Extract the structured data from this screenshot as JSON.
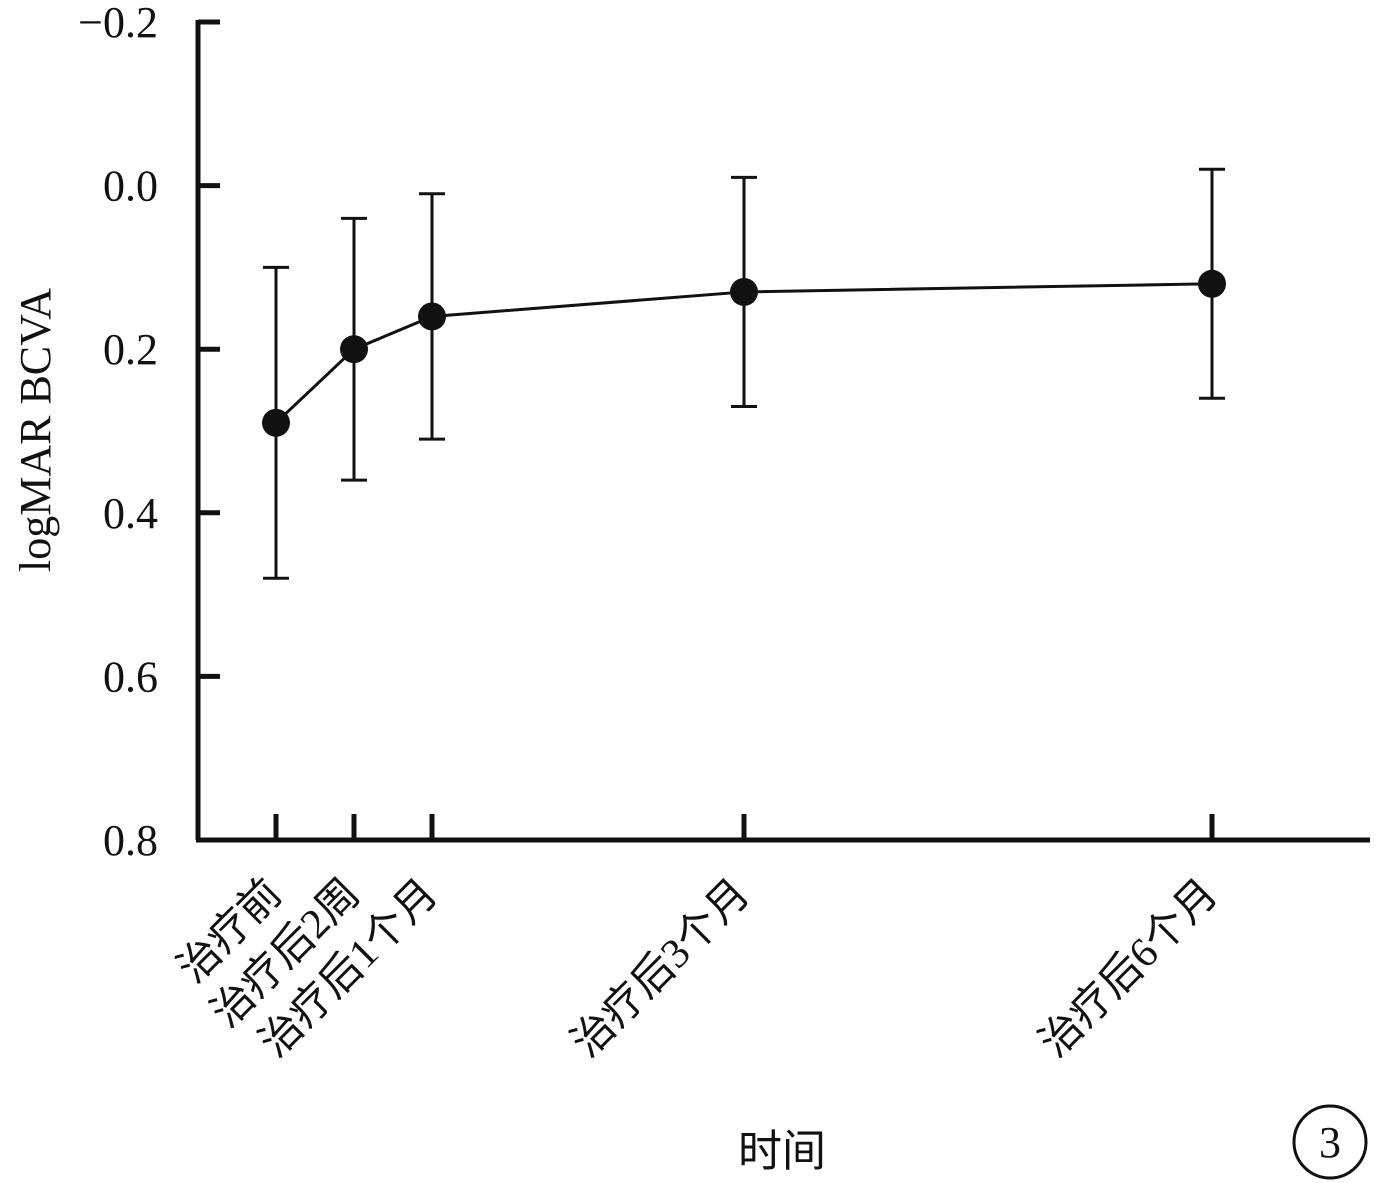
{
  "chart_data": {
    "type": "line",
    "title": "",
    "xlabel": "时间",
    "ylabel": "logMAR BCVA",
    "y_inverted": true,
    "ylim": [
      -0.2,
      0.8
    ],
    "yticks": [
      -0.2,
      0.0,
      0.2,
      0.4,
      0.6,
      0.8
    ],
    "ytick_labels": [
      "−0.2",
      "0.0",
      "0.2",
      "0.4",
      "0.6",
      "0.8"
    ],
    "x_months": [
      0,
      0.5,
      1,
      3,
      6
    ],
    "categories": [
      "治疗前",
      "治疗后2周",
      "治疗后1个月",
      "治疗后3个月",
      "治疗后6个月"
    ],
    "series": [
      {
        "values": [
          0.29,
          0.2,
          0.16,
          0.13,
          0.12
        ],
        "error_low": [
          0.1,
          0.04,
          0.01,
          -0.01,
          -0.02
        ],
        "error_high": [
          0.48,
          0.36,
          0.31,
          0.27,
          0.26
        ]
      }
    ],
    "grid": false,
    "legend": "none",
    "panel_label": "3"
  }
}
